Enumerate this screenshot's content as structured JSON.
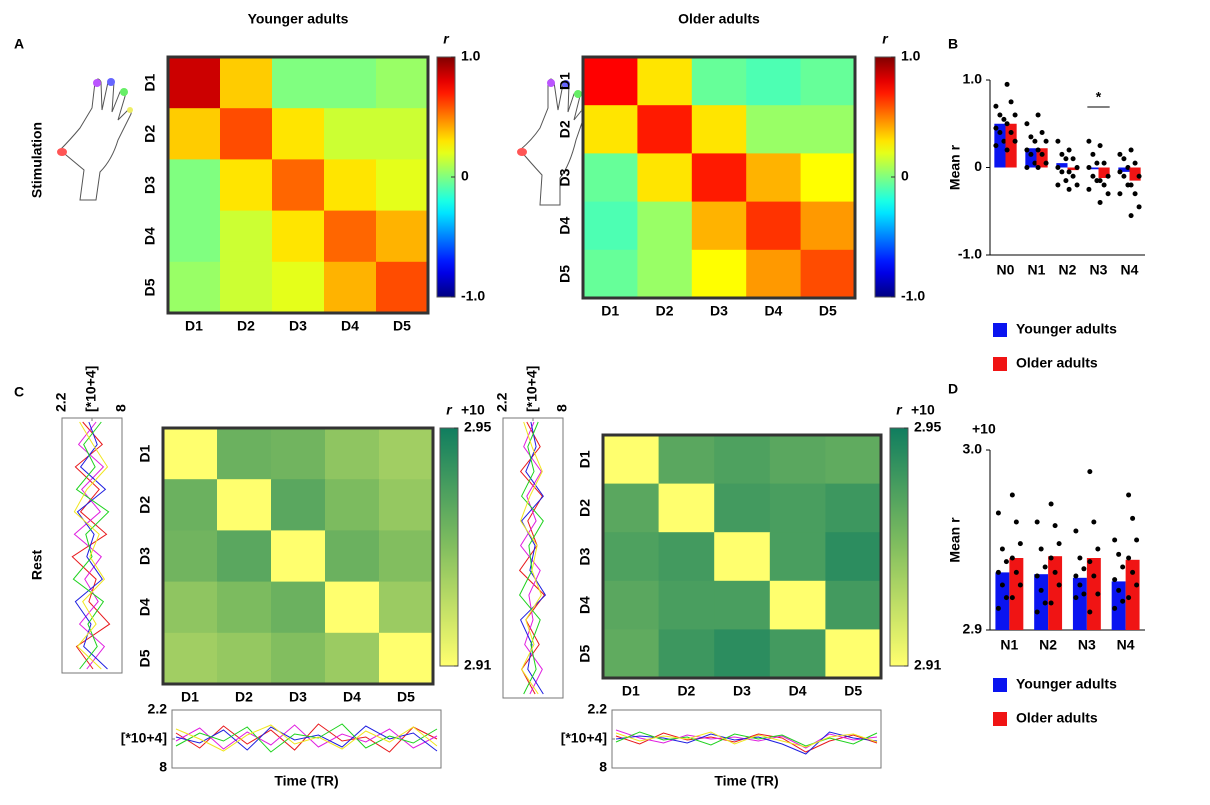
{
  "chart_data": [
    {
      "type": "heatmap",
      "panel": "A",
      "row_label": "Stimulation",
      "title": "Younger adults",
      "categories": [
        "D1",
        "D2",
        "D3",
        "D4",
        "D5"
      ],
      "category_colors": [
        "#e8191c",
        "#e01ee0",
        "#1e1ee0",
        "#1ed21e",
        "#f0e61e"
      ],
      "values": [
        [
          0.85,
          0.35,
          0.0,
          0.0,
          0.05
        ],
        [
          0.35,
          0.6,
          0.3,
          0.15,
          0.15
        ],
        [
          0.0,
          0.3,
          0.55,
          0.3,
          0.2
        ],
        [
          0.0,
          0.15,
          0.3,
          0.55,
          0.4
        ],
        [
          0.05,
          0.15,
          0.2,
          0.4,
          0.6
        ]
      ],
      "colormap": "jet",
      "colorbar": {
        "label": "r",
        "lim": [
          -1,
          1
        ],
        "ticks": [
          {
            "value": 1,
            "label": "1.0"
          },
          0,
          {
            "value": -1,
            "label": "-1.0"
          }
        ]
      }
    },
    {
      "type": "heatmap",
      "title": "Older adults",
      "categories": [
        "D1",
        "D2",
        "D3",
        "D4",
        "D5"
      ],
      "category_colors": [
        "#e8191c",
        "#e01ee0",
        "#1e1ee0",
        "#1ed21e",
        "#f0e61e"
      ],
      "values": [
        [
          0.75,
          0.3,
          -0.05,
          -0.1,
          -0.05
        ],
        [
          0.3,
          0.7,
          0.3,
          0.05,
          0.05
        ],
        [
          -0.05,
          0.3,
          0.7,
          0.4,
          0.25
        ],
        [
          -0.1,
          0.05,
          0.4,
          0.65,
          0.45
        ],
        [
          -0.05,
          0.05,
          0.25,
          0.45,
          0.6
        ]
      ],
      "colormap": "jet",
      "colorbar": {
        "label": "r",
        "lim": [
          -1,
          1
        ],
        "ticks": [
          {
            "value": 1,
            "label": "1.0"
          },
          0,
          {
            "value": -1,
            "label": "-1.0"
          }
        ]
      }
    },
    {
      "type": "heatmap",
      "panel": "C",
      "row_label": "Rest",
      "categories": [
        "D1",
        "D2",
        "D3",
        "D4",
        "D5"
      ],
      "category_colors": [
        "#e8191c",
        "#e01ee0",
        "#1e1ee0",
        "#1ed21e",
        "#f0e61e"
      ],
      "values": [
        [
          2.91,
          2.934,
          2.933,
          2.928,
          2.925
        ],
        [
          2.934,
          2.91,
          2.937,
          2.931,
          2.927
        ],
        [
          2.933,
          2.937,
          2.91,
          2.934,
          2.93
        ],
        [
          2.928,
          2.931,
          2.934,
          2.91,
          2.926
        ],
        [
          2.925,
          2.927,
          2.93,
          2.926,
          2.91
        ]
      ],
      "colormap": "yellow-green",
      "colorbar": {
        "label": "r",
        "exponent": "+10",
        "lim": [
          2.91,
          2.95
        ],
        "ticks": [
          2.95,
          2.91
        ]
      }
    },
    {
      "type": "heatmap",
      "categories": [
        "D1",
        "D2",
        "D3",
        "D4",
        "D5"
      ],
      "category_colors": [
        "#e8191c",
        "#e01ee0",
        "#1e1ee0",
        "#1ed21e",
        "#f0e61e"
      ],
      "values": [
        [
          2.91,
          2.937,
          2.939,
          2.937,
          2.936
        ],
        [
          2.937,
          2.91,
          2.941,
          2.94,
          2.942
        ],
        [
          2.939,
          2.941,
          2.91,
          2.94,
          2.945
        ],
        [
          2.937,
          2.94,
          2.94,
          2.91,
          2.941
        ],
        [
          2.936,
          2.942,
          2.945,
          2.941,
          2.91
        ]
      ],
      "colormap": "yellow-green",
      "colorbar": {
        "label": "r",
        "exponent": "+10",
        "lim": [
          2.91,
          2.95
        ],
        "ticks": [
          2.95,
          2.91
        ]
      }
    },
    {
      "type": "bar",
      "panel": "B",
      "ylabel": "Mean r",
      "categories": [
        "N0",
        "N1",
        "N2",
        "N3",
        "N4"
      ],
      "ylim": [
        -1,
        1
      ],
      "yticks": [
        {
          "value": 1,
          "label": "1.0"
        },
        0,
        {
          "value": -1,
          "label": "-1.0"
        }
      ],
      "annotations": [
        {
          "text": "*",
          "x": "N3"
        }
      ],
      "series": [
        {
          "name": "Younger adults",
          "color": "#0a14f0",
          "values": [
            0.5,
            0.22,
            0.05,
            -0.02,
            -0.05
          ],
          "points": [
            [
              0.7,
              0.6,
              0.55,
              0.45,
              0.4,
              0.3,
              0.25
            ],
            [
              0.5,
              0.35,
              0.3,
              0.2,
              0.15,
              0.05,
              0.0
            ],
            [
              0.3,
              0.15,
              0.1,
              0.0,
              -0.05,
              -0.15,
              -0.2
            ],
            [
              0.3,
              0.15,
              0.05,
              0.0,
              -0.1,
              -0.15,
              -0.25
            ],
            [
              0.15,
              0.1,
              0.0,
              -0.05,
              -0.1,
              -0.2,
              -0.3
            ]
          ]
        },
        {
          "name": "Older adults",
          "color": "#f01414",
          "values": [
            0.5,
            0.22,
            -0.03,
            -0.12,
            -0.15
          ],
          "points": [
            [
              0.95,
              0.75,
              0.6,
              0.5,
              0.4,
              0.3,
              0.2
            ],
            [
              0.6,
              0.4,
              0.3,
              0.2,
              0.15,
              0.05,
              0.0
            ],
            [
              0.2,
              0.1,
              0.0,
              -0.05,
              -0.1,
              -0.2,
              -0.25
            ],
            [
              0.25,
              0.05,
              -0.1,
              -0.15,
              -0.2,
              -0.3,
              -0.4
            ],
            [
              0.2,
              0.05,
              -0.1,
              -0.2,
              -0.3,
              -0.45,
              -0.55
            ]
          ]
        }
      ]
    },
    {
      "type": "bar",
      "panel": "D",
      "ylabel": "Mean r",
      "y_exponent": "+10",
      "categories": [
        "N1",
        "N2",
        "N3",
        "N4"
      ],
      "ylim": [
        2.9,
        3.0
      ],
      "yticks": [
        2.9,
        {
          "value": 3.0,
          "label": "3.0"
        }
      ],
      "series": [
        {
          "name": "Younger adults",
          "color": "#0a14f0",
          "values": [
            2.932,
            2.931,
            2.929,
            2.927
          ],
          "points": [
            [
              2.965,
              2.945,
              2.938,
              2.932,
              2.925,
              2.918,
              2.912
            ],
            [
              2.96,
              2.945,
              2.935,
              2.93,
              2.922,
              2.915,
              2.91
            ],
            [
              2.955,
              2.94,
              2.934,
              2.93,
              2.925,
              2.92,
              2.918
            ],
            [
              2.95,
              2.942,
              2.935,
              2.928,
              2.922,
              2.916,
              2.912
            ]
          ]
        },
        {
          "name": "Older adults",
          "color": "#f01414",
          "values": [
            2.94,
            2.941,
            2.94,
            2.939
          ],
          "points": [
            [
              2.975,
              2.96,
              2.948,
              2.94,
              2.932,
              2.925,
              2.918
            ],
            [
              2.97,
              2.958,
              2.948,
              2.94,
              2.932,
              2.925,
              2.915
            ],
            [
              2.988,
              2.96,
              2.945,
              2.938,
              2.93,
              2.92,
              2.91
            ],
            [
              2.975,
              2.962,
              2.95,
              2.94,
              2.932,
              2.925,
              2.918
            ]
          ]
        }
      ]
    },
    {
      "type": "line",
      "orientation": "vertical",
      "xlim": [
        2.2,
        8
      ],
      "xticks": [
        2.2,
        {
          "value": 5.1,
          "label": "[*10+4]"
        },
        8
      ],
      "series": [
        {
          "color": "#e8191c",
          "values": [
            4.2,
            6.1,
            3.5,
            5.8,
            4.0,
            6.5,
            3.2,
            5.5,
            4.8,
            6.8,
            3.6,
            5.2
          ]
        },
        {
          "color": "#e01ee0",
          "values": [
            5.5,
            3.8,
            6.2,
            4.1,
            5.9,
            3.4,
            6.0,
            4.4,
            5.7,
            3.9,
            6.3,
            4.6
          ]
        },
        {
          "color": "#1e1ee0",
          "values": [
            4.8,
            5.6,
            4.0,
            6.4,
            3.7,
            5.3,
            4.6,
            6.1,
            3.5,
            5.0,
            4.3,
            6.6
          ]
        },
        {
          "color": "#1ed21e",
          "values": [
            6.0,
            4.3,
            5.4,
            3.6,
            6.7,
            4.5,
            5.1,
            3.3,
            6.2,
            4.7,
            5.6,
            3.9
          ]
        },
        {
          "color": "#f0e61e",
          "values": [
            3.9,
            5.2,
            6.6,
            4.6,
            3.4,
            5.8,
            4.9,
            6.3,
            4.2,
            5.5,
            3.7,
            6.0
          ]
        }
      ]
    },
    {
      "type": "line",
      "orientation": "horizontal",
      "xlabel": "Time (TR)",
      "ylim": [
        8,
        2.2
      ],
      "yticks": [
        2.2,
        {
          "value": 5.1,
          "label": "[*10+4]"
        },
        8
      ],
      "series": [
        {
          "color": "#e8191c",
          "values": [
            4.5,
            6.0,
            3.8,
            5.6,
            4.2,
            6.2,
            3.6,
            5.3,
            4.9,
            6.4,
            3.9,
            5.1
          ]
        },
        {
          "color": "#e01ee0",
          "values": [
            5.3,
            4.0,
            6.1,
            4.4,
            5.7,
            3.7,
            5.9,
            4.6,
            5.4,
            4.1,
            6.0,
            4.8
          ]
        },
        {
          "color": "#1e1ee0",
          "values": [
            4.9,
            5.5,
            4.2,
            6.2,
            3.9,
            5.2,
            4.7,
            5.9,
            3.8,
            5.1,
            4.5,
            6.3
          ]
        },
        {
          "color": "#1ed21e",
          "values": [
            5.8,
            4.5,
            5.3,
            3.9,
            6.4,
            4.6,
            5.0,
            3.6,
            6.0,
            4.8,
            5.5,
            4.1
          ]
        },
        {
          "color": "#f0e61e",
          "values": [
            4.1,
            5.1,
            6.3,
            4.7,
            3.7,
            5.6,
            4.9,
            6.1,
            4.3,
            5.4,
            3.9,
            5.8
          ]
        }
      ]
    },
    {
      "type": "line",
      "orientation": "vertical",
      "xlim": [
        2.2,
        8
      ],
      "xticks": [
        2.2,
        {
          "value": 5.1,
          "label": "[*10+4]"
        },
        8
      ],
      "series": [
        {
          "color": "#e8191c",
          "values": [
            4.5,
            5.8,
            3.9,
            6.0,
            4.6,
            5.5,
            3.8,
            6.2,
            4.4,
            5.7,
            4.0,
            5.3
          ]
        },
        {
          "color": "#e01ee0",
          "values": [
            5.2,
            4.2,
            5.9,
            4.5,
            5.4,
            3.9,
            5.8,
            4.7,
            5.1,
            4.3,
            6.0,
            4.8
          ]
        },
        {
          "color": "#1e1ee0",
          "values": [
            4.9,
            5.4,
            4.4,
            6.1,
            4.0,
            5.3,
            4.8,
            6.3,
            3.9,
            5.0,
            4.6,
            6.1
          ]
        },
        {
          "color": "#1ed21e",
          "values": [
            5.6,
            4.6,
            5.2,
            4.0,
            6.1,
            4.7,
            5.0,
            3.8,
            5.8,
            4.9,
            5.4,
            4.2
          ]
        },
        {
          "color": "#f0e61e",
          "values": [
            4.2,
            5.0,
            6.0,
            4.8,
            3.9,
            5.5,
            5.0,
            5.9,
            4.4,
            5.2,
            4.0,
            5.6
          ]
        }
      ]
    },
    {
      "type": "line",
      "orientation": "horizontal",
      "xlabel": "Time (TR)",
      "ylim": [
        8,
        2.2
      ],
      "yticks": [
        2.2,
        {
          "value": 5.1,
          "label": "[*10+4]"
        },
        8
      ],
      "series": [
        {
          "color": "#e8191c",
          "values": [
            4.8,
            5.6,
            4.5,
            5.2,
            4.9,
            5.4,
            4.6,
            5.0,
            6.4,
            5.3,
            4.7,
            5.5
          ]
        },
        {
          "color": "#e01ee0",
          "values": [
            4.2,
            5.0,
            5.5,
            4.7,
            5.1,
            4.9,
            5.3,
            4.8,
            6.0,
            4.6,
            5.2,
            4.9
          ]
        },
        {
          "color": "#1e1ee0",
          "values": [
            5.1,
            4.8,
            5.0,
            5.5,
            4.6,
            5.2,
            4.9,
            5.6,
            6.6,
            4.4,
            5.0,
            5.3
          ]
        },
        {
          "color": "#1ed21e",
          "values": [
            5.4,
            4.4,
            5.2,
            4.9,
            5.7,
            4.6,
            5.1,
            4.7,
            5.8,
            5.0,
            5.6,
            4.5
          ]
        },
        {
          "color": "#f0e61e",
          "values": [
            4.5,
            5.3,
            4.8,
            5.1,
            4.4,
            5.6,
            4.7,
            5.3,
            5.9,
            4.9,
            4.6,
            5.4
          ]
        }
      ]
    }
  ]
}
